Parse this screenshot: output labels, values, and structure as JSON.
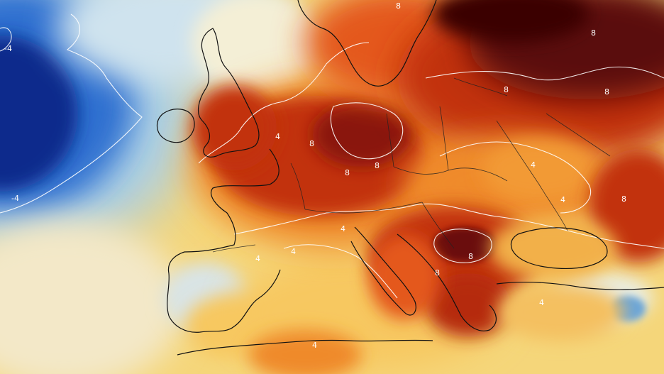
{
  "map": {
    "type": "temperature-anomaly-map",
    "region": "Europe",
    "colors": {
      "deep_cold": "#0a2a8c",
      "cold": "#2f6fd0",
      "cool": "#a9cfe8",
      "neutral": "#f3ecc4",
      "warm": "#f7c861",
      "hot": "#ef8a2a",
      "very_hot": "#c2330f",
      "extreme": "#5a0a0a",
      "contour": "#ffffff",
      "coastline": "#111111"
    },
    "contour_labels": [
      "8",
      "8",
      "8",
      "8",
      "8",
      "8",
      "8",
      "8",
      "8",
      "8",
      "4",
      "4",
      "4",
      "4",
      "4",
      "4",
      "4",
      "4",
      "-4",
      "-4"
    ]
  }
}
